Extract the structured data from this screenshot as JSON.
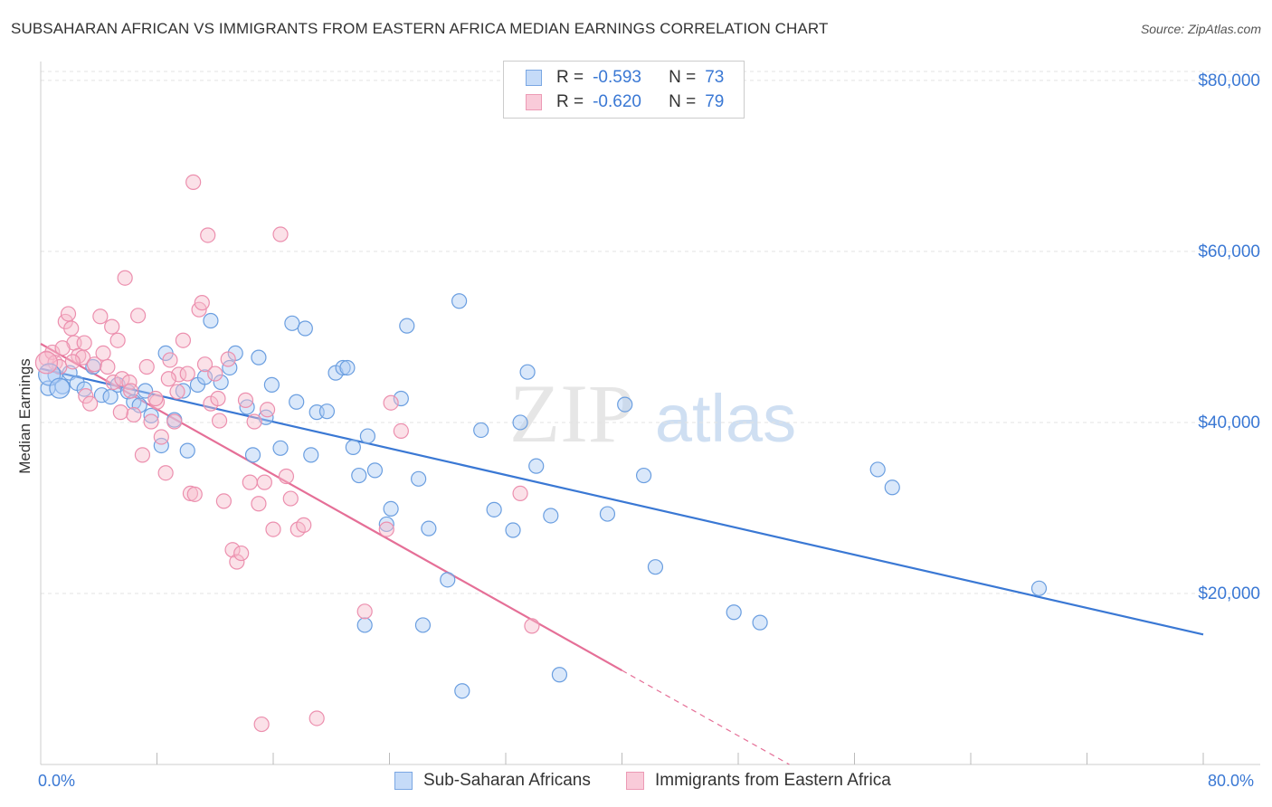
{
  "header": {
    "title": "SUBSAHARAN AFRICAN VS IMMIGRANTS FROM EASTERN AFRICA MEDIAN EARNINGS CORRELATION CHART",
    "source": "Source: ZipAtlas.com"
  },
  "legend": {
    "rows": [
      {
        "r_label": "R =",
        "r_value": "-0.593",
        "n_label": "N =",
        "n_value": "73",
        "color": "#aecbf5"
      },
      {
        "r_label": "R =",
        "r_value": "-0.620",
        "n_label": "N =",
        "n_value": "79",
        "color": "#f7bccd"
      }
    ]
  },
  "bottom_legend": {
    "series1": "Sub-Saharan Africans",
    "series2": "Immigrants from Eastern Africa"
  },
  "axes": {
    "x_min_label": "0.0%",
    "x_max_label": "80.0%"
  },
  "watermark": {
    "zip": "ZIP",
    "atlas": "atlas"
  },
  "chart_data": {
    "type": "scatter",
    "title": "SUBSAHARAN AFRICAN VS IMMIGRANTS FROM EASTERN AFRICA MEDIAN EARNINGS CORRELATION CHART",
    "xlabel": "",
    "ylabel": "Median Earnings",
    "xlim": [
      0,
      80
    ],
    "ylim": [
      0,
      82000
    ],
    "yticks": [
      20000,
      40000,
      60000,
      80000
    ],
    "ytick_labels": [
      "$20,000",
      "$40,000",
      "$60,000",
      "$80,000"
    ],
    "grid": true,
    "legend_position": "top-center",
    "series": [
      {
        "name": "Sub-Saharan Africans",
        "color": "#4a86d8",
        "fill": "#aecbf5",
        "R": -0.593,
        "N": 73,
        "trend": {
          "x0": 0,
          "y0": 46300,
          "x1": 80,
          "y1": 15200
        },
        "points": [
          [
            0.5,
            44000
          ],
          [
            1.0,
            45500
          ],
          [
            1.5,
            44200
          ],
          [
            2.0,
            45800
          ],
          [
            2.5,
            44600
          ],
          [
            3.0,
            43900
          ],
          [
            3.6,
            46500
          ],
          [
            4.2,
            43200
          ],
          [
            4.8,
            43000
          ],
          [
            5.3,
            44400
          ],
          [
            6.0,
            43600
          ],
          [
            6.4,
            42400
          ],
          [
            6.8,
            42000
          ],
          [
            7.2,
            43700
          ],
          [
            7.6,
            40800
          ],
          [
            8.3,
            37300
          ],
          [
            8.6,
            48100
          ],
          [
            9.2,
            40300
          ],
          [
            9.8,
            43700
          ],
          [
            10.1,
            36700
          ],
          [
            10.8,
            44400
          ],
          [
            11.3,
            45300
          ],
          [
            11.7,
            51900
          ],
          [
            12.4,
            44700
          ],
          [
            13.0,
            46400
          ],
          [
            13.4,
            48100
          ],
          [
            14.2,
            41800
          ],
          [
            14.6,
            36200
          ],
          [
            15.0,
            47600
          ],
          [
            15.5,
            40600
          ],
          [
            15.9,
            44400
          ],
          [
            16.5,
            37000
          ],
          [
            17.3,
            51600
          ],
          [
            17.6,
            42400
          ],
          [
            18.2,
            51000
          ],
          [
            18.6,
            36200
          ],
          [
            19.0,
            41200
          ],
          [
            19.7,
            41300
          ],
          [
            20.3,
            45800
          ],
          [
            20.8,
            46400
          ],
          [
            21.1,
            46400
          ],
          [
            21.5,
            37100
          ],
          [
            21.9,
            33800
          ],
          [
            22.5,
            38400
          ],
          [
            23.0,
            34400
          ],
          [
            23.8,
            28100
          ],
          [
            24.1,
            29900
          ],
          [
            24.8,
            42800
          ],
          [
            25.2,
            51300
          ],
          [
            26.0,
            33400
          ],
          [
            26.7,
            27600
          ],
          [
            28.0,
            21600
          ],
          [
            28.8,
            54200
          ],
          [
            30.3,
            39100
          ],
          [
            31.2,
            29800
          ],
          [
            32.5,
            27400
          ],
          [
            33.0,
            40000
          ],
          [
            33.5,
            45900
          ],
          [
            34.1,
            34900
          ],
          [
            35.1,
            29100
          ],
          [
            29.0,
            8600
          ],
          [
            26.3,
            16300
          ],
          [
            35.7,
            10500
          ],
          [
            39.0,
            29300
          ],
          [
            40.2,
            42100
          ],
          [
            41.5,
            33800
          ],
          [
            42.3,
            23100
          ],
          [
            47.7,
            17800
          ],
          [
            49.5,
            16600
          ],
          [
            57.6,
            34500
          ],
          [
            58.6,
            32400
          ],
          [
            68.7,
            20600
          ],
          [
            22.3,
            16300
          ]
        ]
      },
      {
        "name": "Immigrants from Eastern Africa",
        "color": "#e56f97",
        "fill": "#f7bccd",
        "R": -0.62,
        "N": 79,
        "trend": {
          "x0": 0,
          "y0": 49200,
          "x1": 40,
          "y1": 11000,
          "dash_x1": 57,
          "dash_y1": -5000
        },
        "points": [
          [
            0.4,
            47500
          ],
          [
            0.8,
            48200
          ],
          [
            1.0,
            47000
          ],
          [
            1.3,
            46500
          ],
          [
            1.7,
            51800
          ],
          [
            1.9,
            52700
          ],
          [
            2.1,
            51000
          ],
          [
            2.3,
            49300
          ],
          [
            2.6,
            47800
          ],
          [
            2.9,
            47600
          ],
          [
            3.1,
            43100
          ],
          [
            3.4,
            42200
          ],
          [
            3.7,
            46800
          ],
          [
            4.1,
            52400
          ],
          [
            4.3,
            48100
          ],
          [
            4.6,
            46500
          ],
          [
            5.0,
            44700
          ],
          [
            5.3,
            49600
          ],
          [
            5.6,
            45100
          ],
          [
            5.8,
            56900
          ],
          [
            6.1,
            44700
          ],
          [
            6.4,
            40900
          ],
          [
            6.7,
            52500
          ],
          [
            7.0,
            36200
          ],
          [
            7.3,
            46500
          ],
          [
            7.6,
            40100
          ],
          [
            8.0,
            42400
          ],
          [
            8.3,
            38300
          ],
          [
            8.6,
            34100
          ],
          [
            8.9,
            47300
          ],
          [
            9.2,
            40100
          ],
          [
            9.5,
            45600
          ],
          [
            9.8,
            49600
          ],
          [
            10.1,
            45700
          ],
          [
            10.3,
            31700
          ],
          [
            10.6,
            31600
          ],
          [
            10.9,
            53200
          ],
          [
            11.1,
            54000
          ],
          [
            11.3,
            46800
          ],
          [
            11.7,
            42200
          ],
          [
            12.0,
            45700
          ],
          [
            12.3,
            40200
          ],
          [
            12.6,
            30800
          ],
          [
            12.9,
            47400
          ],
          [
            13.2,
            25100
          ],
          [
            13.5,
            23700
          ],
          [
            13.8,
            24700
          ],
          [
            14.1,
            42600
          ],
          [
            14.4,
            33000
          ],
          [
            14.7,
            40100
          ],
          [
            15.0,
            30500
          ],
          [
            15.4,
            33000
          ],
          [
            15.6,
            41500
          ],
          [
            16.0,
            27500
          ],
          [
            16.5,
            62000
          ],
          [
            16.9,
            33700
          ],
          [
            17.2,
            31100
          ],
          [
            17.7,
            27500
          ],
          [
            18.1,
            28000
          ],
          [
            10.5,
            68100
          ],
          [
            11.5,
            61900
          ],
          [
            19.0,
            5400
          ],
          [
            15.2,
            4700
          ],
          [
            22.3,
            17900
          ],
          [
            23.8,
            27500
          ],
          [
            24.1,
            42300
          ],
          [
            24.8,
            39000
          ],
          [
            33.0,
            31700
          ],
          [
            33.8,
            16200
          ],
          [
            3.0,
            49300
          ],
          [
            4.9,
            51200
          ],
          [
            6.2,
            43700
          ],
          [
            1.5,
            48700
          ],
          [
            2.2,
            47100
          ],
          [
            7.9,
            42800
          ],
          [
            9.4,
            43600
          ],
          [
            5.5,
            41200
          ],
          [
            12.2,
            42800
          ],
          [
            8.8,
            45100
          ]
        ]
      }
    ]
  }
}
